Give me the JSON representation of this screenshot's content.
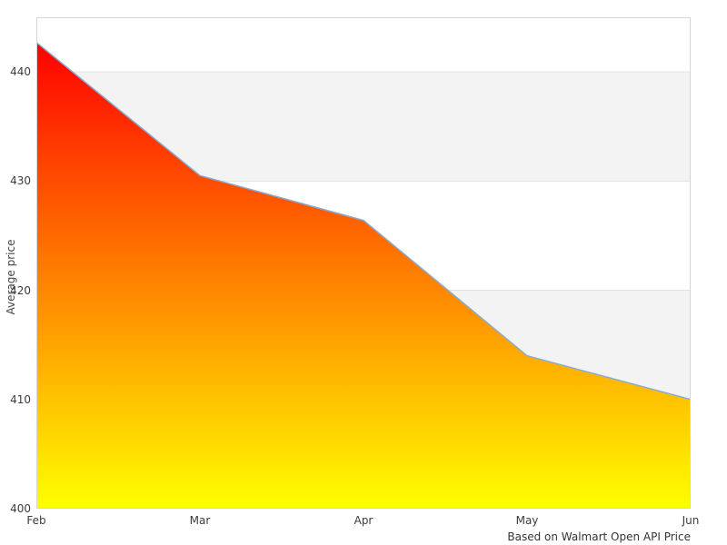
{
  "chart": {
    "caption": "Based on Walmart Open API Price",
    "colors": {
      "gradient_top": "#ff0000",
      "gradient_bottom": "#ffff00",
      "line_stroke": "#8aabcd",
      "band_gray": "#f3f3f3",
      "gridline": "#e3e3e3",
      "plot_border": "#d5d5d5",
      "tick_text": "#3c3c3c"
    }
  },
  "chart_data": {
    "type": "area",
    "categories": [
      "Feb",
      "Mar",
      "Apr",
      "May",
      "Jun"
    ],
    "values": [
      442.7,
      430.5,
      426.4,
      414.0,
      410.0
    ],
    "series_name": "Average price",
    "title": "",
    "xlabel": "",
    "ylabel": "Average price",
    "ylim": [
      400,
      445
    ],
    "y_ticks": [
      400,
      410,
      420,
      430,
      440
    ],
    "grid": "alternating-horizontal-bands",
    "legend": "none",
    "fill": "vertical gradient red (top) to yellow (bottom)",
    "annotations": [
      "Based on Walmart Open API Price"
    ]
  }
}
